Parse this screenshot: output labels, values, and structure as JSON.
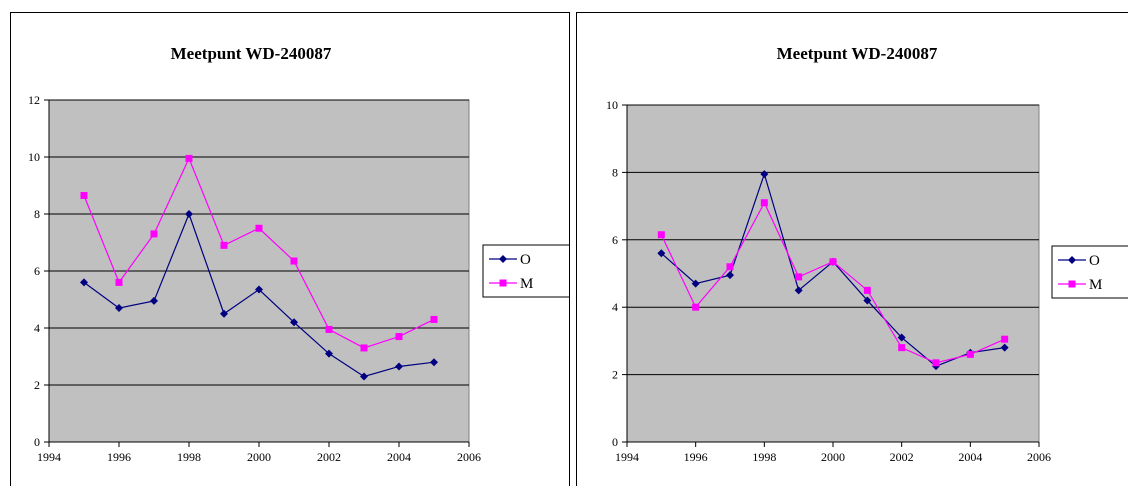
{
  "chart_data": [
    {
      "type": "line",
      "title": "Meetpunt WD-240087",
      "xlabel": "",
      "ylabel": "",
      "xlim": [
        1994,
        2006
      ],
      "ylim": [
        0,
        12
      ],
      "xticks": [
        "1994",
        "1996",
        "1998",
        "2000",
        "2002",
        "2004",
        "2006"
      ],
      "yticks": [
        "0",
        "2",
        "4",
        "6",
        "8",
        "10",
        "12"
      ],
      "grid": true,
      "legend_position": "right",
      "series": [
        {
          "name": "O",
          "color": "#000080",
          "marker": "diamond",
          "x": [
            1995,
            1996,
            1997,
            1998,
            1999,
            2000,
            2001,
            2002,
            2003,
            2004,
            2005
          ],
          "values": [
            5.6,
            4.7,
            4.95,
            8.0,
            4.5,
            5.35,
            4.2,
            3.1,
            2.3,
            2.65,
            2.8
          ]
        },
        {
          "name": "M",
          "color": "#ff00ff",
          "marker": "square",
          "x": [
            1995,
            1996,
            1997,
            1998,
            1999,
            2000,
            2001,
            2002,
            2003,
            2004,
            2005
          ],
          "values": [
            8.65,
            5.6,
            7.3,
            9.95,
            6.9,
            7.5,
            6.35,
            3.95,
            3.3,
            3.7,
            4.3
          ]
        }
      ]
    },
    {
      "type": "line",
      "title": "Meetpunt WD-240087",
      "xlabel": "",
      "ylabel": "",
      "xlim": [
        1994,
        2006
      ],
      "ylim": [
        0,
        10
      ],
      "xticks": [
        "1994",
        "1996",
        "1998",
        "2000",
        "2002",
        "2004",
        "2006"
      ],
      "yticks": [
        "0",
        "2",
        "4",
        "6",
        "8",
        "10"
      ],
      "grid": true,
      "legend_position": "right",
      "series": [
        {
          "name": "O",
          "color": "#000080",
          "marker": "diamond",
          "x": [
            1995,
            1996,
            1997,
            1998,
            1999,
            2000,
            2001,
            2002,
            2003,
            2004,
            2005
          ],
          "values": [
            5.6,
            4.7,
            4.95,
            7.95,
            4.5,
            5.35,
            4.2,
            3.1,
            2.25,
            2.65,
            2.8
          ]
        },
        {
          "name": "M",
          "color": "#ff00ff",
          "marker": "square",
          "x": [
            1995,
            1996,
            1997,
            1998,
            1999,
            2000,
            2001,
            2002,
            2003,
            2004,
            2005
          ],
          "values": [
            6.15,
            4.0,
            5.2,
            7.1,
            4.9,
            5.35,
            4.5,
            2.8,
            2.35,
            2.6,
            3.05
          ]
        }
      ]
    }
  ]
}
